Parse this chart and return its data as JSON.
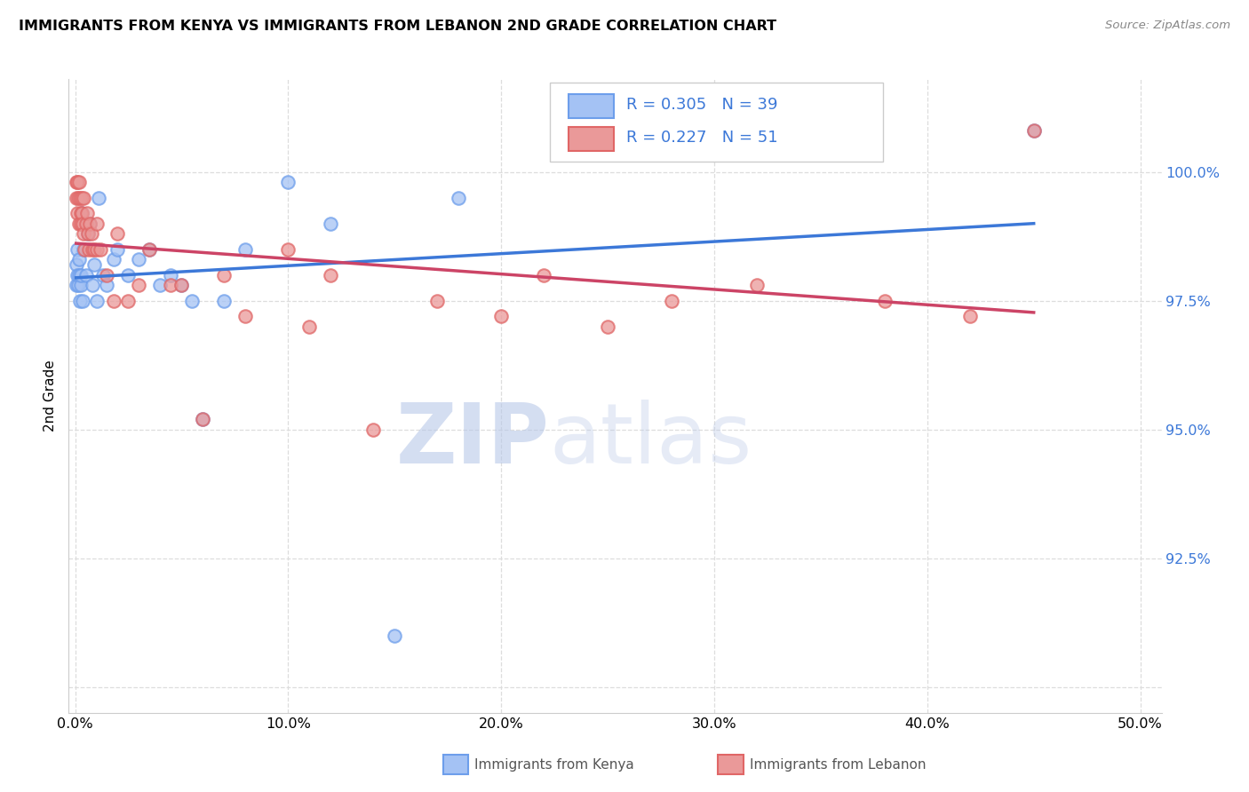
{
  "title": "IMMIGRANTS FROM KENYA VS IMMIGRANTS FROM LEBANON 2ND GRADE CORRELATION CHART",
  "source": "Source: ZipAtlas.com",
  "ylabel": "2nd Grade",
  "xlim": [
    -0.3,
    51.0
  ],
  "ylim": [
    89.5,
    101.8
  ],
  "x_ticks": [
    0.0,
    10.0,
    20.0,
    30.0,
    40.0,
    50.0
  ],
  "x_tick_labels": [
    "0.0%",
    "10.0%",
    "20.0%",
    "30.0%",
    "40.0%",
    "50.0%"
  ],
  "y_ticks": [
    90.0,
    92.5,
    95.0,
    97.5,
    100.0
  ],
  "y_tick_labels": [
    "",
    "92.5%",
    "95.0%",
    "97.5%",
    "100.0%"
  ],
  "kenya_R": 0.305,
  "kenya_N": 39,
  "lebanon_R": 0.227,
  "lebanon_N": 51,
  "kenya_color": "#a4c2f4",
  "kenya_edge_color": "#6d9eeb",
  "lebanon_color": "#ea9999",
  "lebanon_edge_color": "#e06666",
  "kenya_line_color": "#3c78d8",
  "lebanon_line_color": "#cc4466",
  "grid_color": "#dddddd",
  "kenya_x": [
    0.05,
    0.08,
    0.1,
    0.12,
    0.15,
    0.18,
    0.2,
    0.22,
    0.25,
    0.28,
    0.3,
    0.35,
    0.4,
    0.5,
    0.6,
    0.7,
    0.8,
    0.9,
    1.0,
    1.1,
    1.3,
    1.5,
    1.8,
    2.0,
    2.5,
    3.0,
    3.5,
    4.0,
    4.5,
    5.0,
    5.5,
    6.0,
    7.0,
    8.0,
    10.0,
    12.0,
    15.0,
    18.0,
    45.0
  ],
  "kenya_y": [
    98.2,
    97.8,
    98.5,
    98.0,
    97.8,
    98.3,
    98.0,
    97.5,
    97.8,
    98.0,
    99.2,
    97.5,
    98.5,
    98.0,
    98.8,
    99.0,
    97.8,
    98.2,
    97.5,
    99.5,
    98.0,
    97.8,
    98.3,
    98.5,
    98.0,
    98.3,
    98.5,
    97.8,
    98.0,
    97.8,
    97.5,
    95.2,
    97.5,
    98.5,
    99.8,
    99.0,
    91.0,
    99.5,
    100.8
  ],
  "lebanon_x": [
    0.05,
    0.08,
    0.1,
    0.12,
    0.15,
    0.18,
    0.2,
    0.22,
    0.25,
    0.28,
    0.3,
    0.32,
    0.35,
    0.38,
    0.4,
    0.45,
    0.5,
    0.55,
    0.6,
    0.65,
    0.7,
    0.75,
    0.8,
    0.9,
    1.0,
    1.0,
    1.2,
    1.5,
    1.8,
    2.0,
    2.5,
    3.0,
    3.5,
    4.5,
    5.0,
    6.0,
    7.0,
    8.0,
    10.0,
    11.0,
    12.0,
    14.0,
    17.0,
    20.0,
    22.0,
    25.0,
    28.0,
    32.0,
    38.0,
    42.0,
    45.0
  ],
  "lebanon_y": [
    99.8,
    99.5,
    99.2,
    99.8,
    99.5,
    99.0,
    99.8,
    99.5,
    99.2,
    99.0,
    99.5,
    99.2,
    99.0,
    98.8,
    99.5,
    98.5,
    99.0,
    99.2,
    98.8,
    98.5,
    99.0,
    98.8,
    98.5,
    98.5,
    99.0,
    98.5,
    98.5,
    98.0,
    97.5,
    98.8,
    97.5,
    97.8,
    98.5,
    97.8,
    97.8,
    95.2,
    98.0,
    97.2,
    98.5,
    97.0,
    98.0,
    95.0,
    97.5,
    97.2,
    98.0,
    97.0,
    97.5,
    97.8,
    97.5,
    97.2,
    100.8
  ]
}
